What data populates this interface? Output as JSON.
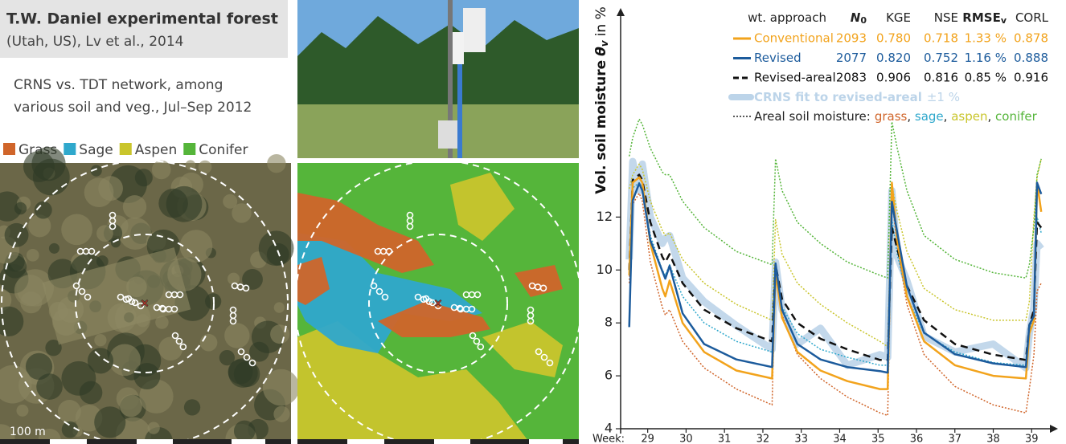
{
  "panel": {
    "title": "T.W. Daniel experimental forest",
    "subtitle": "(Utah, US), Lv et al., 2014",
    "description": [
      "CRNS vs. TDT network, among",
      "various soil and veg., Jul–Sep 2012"
    ],
    "landcover_legend": [
      "Grass",
      "Sage",
      "Aspen",
      "Conifer"
    ],
    "landcover_colors": [
      "#d0652a",
      "#2fa8cc",
      "#c9c52c",
      "#55b53a"
    ],
    "scale_label": "100 m"
  },
  "chart_data": {
    "type": "line",
    "ylabel": {
      "text": "Vol. soil moisture",
      "symbol": "θ",
      "sub": "v",
      "unit": "in %"
    },
    "xlabel": "Week:",
    "x": [
      28.52,
      28.61,
      28.78,
      28.86,
      29.07,
      29.38,
      29.46,
      29.57,
      29.91,
      30.47,
      31.31,
      32.24,
      32.33,
      32.5,
      32.9,
      33.5,
      34.2,
      35.05,
      35.25,
      35.36,
      35.5,
      35.75,
      36.2,
      37.0,
      38.0,
      38.85,
      38.94,
      39.06,
      39.14,
      39.25
    ],
    "xlim": [
      28.4,
      39.35
    ],
    "xticks": [
      29,
      30,
      31,
      32,
      33,
      34,
      35,
      36,
      37,
      38,
      39
    ],
    "ylim": [
      4,
      19.9
    ],
    "yticks": [
      4,
      6,
      8,
      10,
      12
    ],
    "legend_header": [
      {
        "text": "wt. approach"
      },
      {
        "text": "N",
        "sub": "0"
      },
      {
        "text": "KGE"
      },
      {
        "text": "NSE"
      },
      {
        "text": "RMSE",
        "sub": "v"
      },
      {
        "text": "CORL"
      }
    ],
    "areal_label": "Areal soil moisture:",
    "separator": ", ",
    "series": [
      {
        "name": "Conventional",
        "color": "#f2a31c",
        "width": 2.5,
        "dash": "none",
        "stats": [
          "2093",
          "0.780",
          "0.718",
          "1.33 %",
          "0.878"
        ],
        "values": [
          9.8,
          13.3,
          13.5,
          13.3,
          11.0,
          9.3,
          9.0,
          9.6,
          8.0,
          6.9,
          6.2,
          5.9,
          9.9,
          8.2,
          6.9,
          6.2,
          5.8,
          5.5,
          5.5,
          13.3,
          11.1,
          9.0,
          7.3,
          6.4,
          6.0,
          5.9,
          7.6,
          8.1,
          13.3,
          12.2
        ]
      },
      {
        "name": "Revised",
        "color": "#1c5b9c",
        "width": 2.5,
        "dash": "none",
        "stats": [
          "2077",
          "0.820",
          "0.752",
          "1.16 %",
          "0.888"
        ],
        "values": [
          7.84,
          12.63,
          13.27,
          13.0,
          11.12,
          9.96,
          9.67,
          10.16,
          8.36,
          7.2,
          6.62,
          6.33,
          10.25,
          8.5,
          7.2,
          6.62,
          6.33,
          6.18,
          6.12,
          12.58,
          11.41,
          9.38,
          7.63,
          6.82,
          6.47,
          6.33,
          7.92,
          8.27,
          13.3,
          12.87
        ]
      },
      {
        "name": "Revised-areal",
        "color": "#111111",
        "width": 2.5,
        "dash": "9 6",
        "stats": [
          "2083",
          "0.906",
          "0.816",
          "0.85 %",
          "0.916"
        ],
        "values": [
          10.0,
          13.4,
          13.6,
          13.4,
          11.8,
          10.5,
          10.3,
          10.6,
          9.5,
          8.5,
          7.8,
          7.3,
          10.2,
          8.9,
          8.0,
          7.4,
          7.0,
          6.6,
          6.6,
          11.6,
          10.8,
          9.4,
          8.1,
          7.2,
          6.8,
          6.6,
          7.9,
          8.5,
          11.8,
          11.6
        ]
      },
      {
        "name": "CRNS fit to revised-areal",
        "band_label": "±1 %",
        "color": "#bcd4e9",
        "width": 9,
        "dash": "none",
        "values": [
          10.4,
          14.1,
          13.0,
          14.0,
          12.0,
          11.0,
          11.2,
          11.3,
          9.7,
          8.8,
          7.9,
          7.0,
          10.3,
          8.5,
          7.2,
          7.8,
          6.4,
          6.8,
          6.7,
          13.0,
          10.5,
          9.6,
          7.5,
          6.9,
          7.2,
          6.3,
          7.6,
          8.6,
          11.0,
          10.8
        ]
      },
      {
        "name": "grass",
        "color": "#d0652a",
        "width": 1.5,
        "dash": "2 2",
        "values": [
          9.5,
          12.5,
          12.9,
          12.6,
          10.3,
          8.6,
          8.3,
          8.5,
          7.3,
          6.3,
          5.5,
          4.9,
          10.25,
          8.3,
          6.8,
          5.9,
          5.2,
          4.6,
          4.5,
          12.7,
          10.9,
          8.7,
          6.8,
          5.6,
          4.9,
          4.6,
          5.5,
          6.8,
          9.2,
          9.5
        ]
      },
      {
        "name": "sage",
        "color": "#2fa8cc",
        "width": 1.5,
        "dash": "2 2",
        "values": [
          10.1,
          13.1,
          13.3,
          13.1,
          11.3,
          10.0,
          9.8,
          10.2,
          9.0,
          8.0,
          7.3,
          6.9,
          9.9,
          8.6,
          7.6,
          7.0,
          6.7,
          6.4,
          6.4,
          11.9,
          10.6,
          9.0,
          7.6,
          6.9,
          6.5,
          6.4,
          7.7,
          8.3,
          12.0,
          11.4
        ]
      },
      {
        "name": "aspen",
        "color": "#c9c52c",
        "width": 1.5,
        "dash": "2 2",
        "values": [
          13.07,
          13.6,
          14.0,
          13.8,
          12.6,
          11.5,
          11.3,
          11.4,
          10.4,
          9.5,
          8.7,
          8.1,
          11.9,
          10.6,
          9.5,
          8.7,
          8.0,
          7.3,
          7.1,
          13.2,
          12.2,
          10.7,
          9.3,
          8.5,
          8.1,
          8.1,
          8.8,
          12.0,
          13.5,
          14.2
        ]
      },
      {
        "name": "conifer",
        "color": "#55b53a",
        "width": 1.5,
        "dash": "2 2",
        "values": [
          14.3,
          15.0,
          15.7,
          15.5,
          14.6,
          13.7,
          13.6,
          13.6,
          12.6,
          11.6,
          10.7,
          10.2,
          14.2,
          13.0,
          11.8,
          11.0,
          10.3,
          9.8,
          9.7,
          15.6,
          14.6,
          13.0,
          11.3,
          10.4,
          9.9,
          9.7,
          10.2,
          11.6,
          13.6,
          14.2
        ]
      }
    ]
  }
}
